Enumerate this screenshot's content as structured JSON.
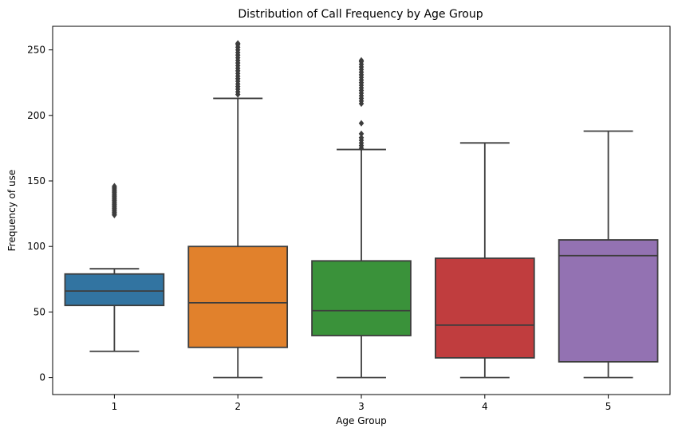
{
  "chart_data": {
    "type": "box",
    "title": "Distribution of Call Frequency by Age Group",
    "xlabel": "Age Group",
    "ylabel": "Frequency of use",
    "categories": [
      "1",
      "2",
      "3",
      "4",
      "5"
    ],
    "ylim": [
      -13,
      268
    ],
    "yticks": [
      0,
      50,
      100,
      150,
      200,
      250
    ],
    "grid": false,
    "legend": "none",
    "colors": [
      "#3274a1",
      "#e1812c",
      "#3a923a",
      "#c03d3e",
      "#9372b2"
    ],
    "line_color": "#3d3d3d",
    "boxes": [
      {
        "category": "1",
        "whisker_low": 20,
        "q1": 55,
        "median": 66,
        "q3": 79,
        "whisker_high": 83,
        "outliers": [
          124,
          125,
          126,
          127,
          128,
          129,
          130,
          131,
          132,
          133,
          134,
          135,
          136,
          137,
          138,
          139,
          140,
          141,
          142,
          143,
          144,
          145,
          146
        ]
      },
      {
        "category": "2",
        "whisker_low": 0,
        "q1": 23,
        "median": 57,
        "q3": 100,
        "whisker_high": 213,
        "outliers": [
          216,
          218,
          220,
          222,
          224,
          226,
          228,
          230,
          232,
          234,
          236,
          238,
          240,
          242,
          244,
          246,
          248,
          250,
          252,
          254,
          255
        ]
      },
      {
        "category": "3",
        "whisker_low": 0,
        "q1": 32,
        "median": 51,
        "q3": 89,
        "whisker_high": 174,
        "outliers": [
          175,
          177,
          179,
          181,
          183,
          186,
          194,
          209,
          211,
          213,
          215,
          217,
          219,
          221,
          223,
          225,
          227,
          229,
          231,
          233,
          235,
          237,
          239,
          241,
          242
        ]
      },
      {
        "category": "4",
        "whisker_low": 0,
        "q1": 15,
        "median": 40,
        "q3": 91,
        "whisker_high": 179,
        "outliers": []
      },
      {
        "category": "5",
        "whisker_low": 0,
        "q1": 12,
        "median": 93,
        "q3": 105,
        "whisker_high": 188,
        "outliers": []
      }
    ]
  }
}
